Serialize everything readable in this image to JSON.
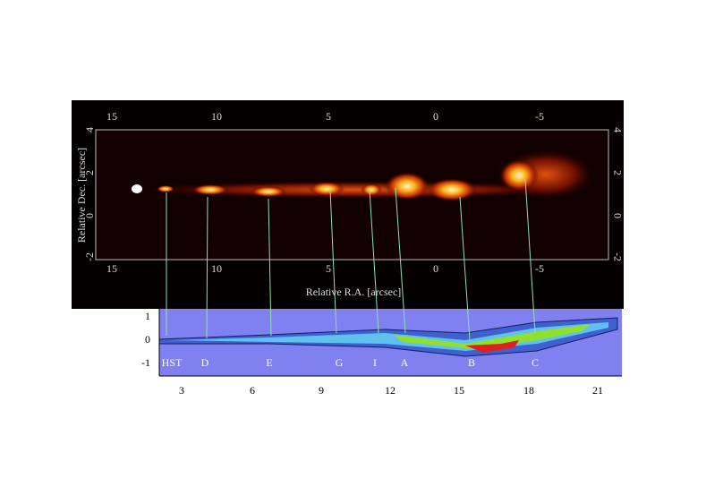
{
  "top_panel": {
    "x_ticks_top": [
      "15",
      "10",
      "5",
      "0",
      "-5"
    ],
    "x_ticks_bottom": [
      "15",
      "10",
      "5",
      "0",
      "-5"
    ],
    "y_ticks_left": [
      "4",
      "2",
      "0",
      "-2"
    ],
    "y_ticks_right": [
      "4",
      "2",
      "0",
      "-2"
    ],
    "x_label": "Relative R.A. [arcsec]",
    "y_label": "Relative Dec. [arcsec]"
  },
  "bottom_panel": {
    "y_ticks": [
      "1",
      "0",
      "-1"
    ],
    "x_ticks": [
      "3",
      "6",
      "9",
      "12",
      "15",
      "18",
      "21"
    ],
    "knots": [
      "HST",
      "D",
      "E",
      "G",
      "I",
      "A",
      "B",
      "C"
    ]
  }
}
